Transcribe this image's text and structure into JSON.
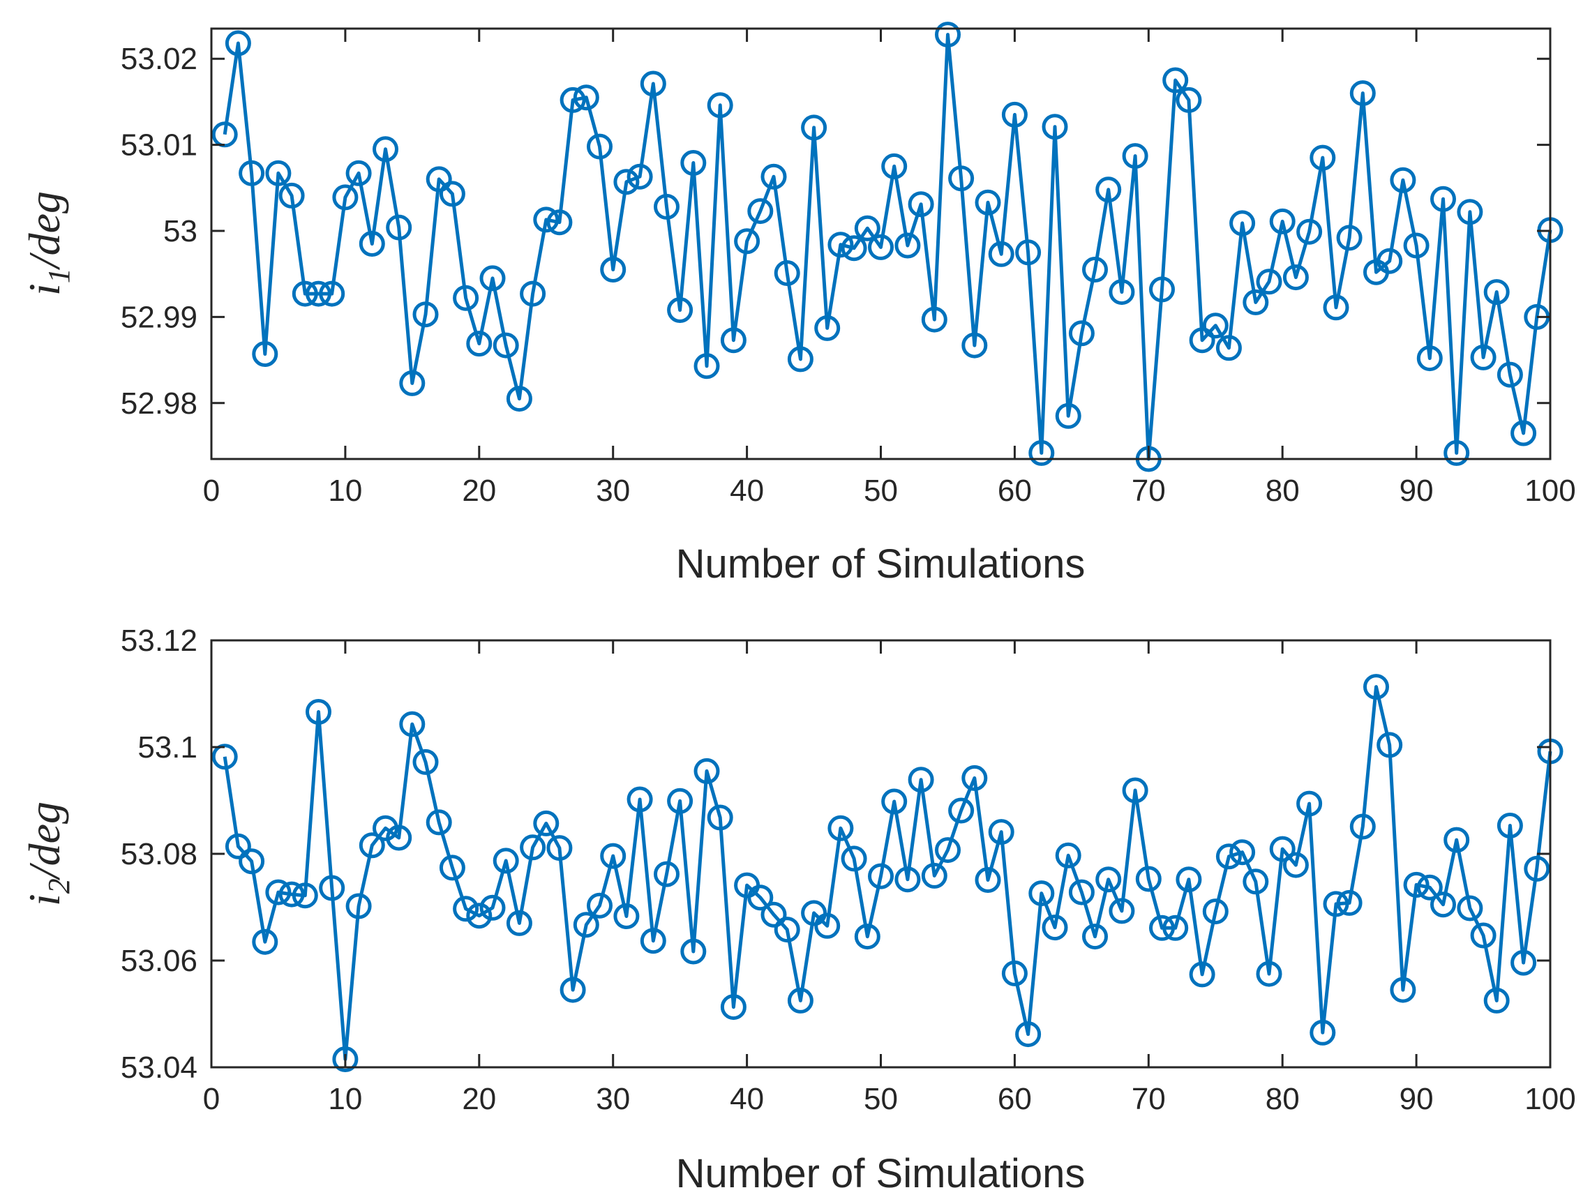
{
  "chart_data": [
    {
      "type": "line",
      "marker": "circle",
      "color": "#0072BD",
      "title": "",
      "xlabel": "Number of Simulations",
      "ylabel": {
        "base": "i",
        "sub": "1",
        "suffix": "/deg"
      },
      "xlim": [
        0,
        100
      ],
      "ylim": [
        52.9735,
        53.0235
      ],
      "xticks": [
        0,
        10,
        20,
        30,
        40,
        50,
        60,
        70,
        80,
        90,
        100
      ],
      "xtick_labels": [
        "0",
        "10",
        "20",
        "30",
        "40",
        "50",
        "60",
        "70",
        "80",
        "90",
        "100"
      ],
      "yticks": [
        52.98,
        52.99,
        53.0,
        53.01,
        53.02
      ],
      "ytick_labels": [
        "52.98",
        "52.99",
        "53",
        "53.01",
        "53.02"
      ],
      "grid": false,
      "x": [
        1,
        2,
        3,
        4,
        5,
        6,
        7,
        8,
        9,
        10,
        11,
        12,
        13,
        14,
        15,
        16,
        17,
        18,
        19,
        20,
        21,
        22,
        23,
        24,
        25,
        26,
        27,
        28,
        29,
        30,
        31,
        32,
        33,
        34,
        35,
        36,
        37,
        38,
        39,
        40,
        41,
        42,
        43,
        44,
        45,
        46,
        47,
        48,
        49,
        50,
        51,
        52,
        53,
        54,
        55,
        56,
        57,
        58,
        59,
        60,
        61,
        62,
        63,
        64,
        65,
        66,
        67,
        68,
        69,
        70,
        71,
        72,
        73,
        74,
        75,
        76,
        77,
        78,
        79,
        80,
        81,
        82,
        83,
        84,
        85,
        86,
        87,
        88,
        89,
        90,
        91,
        92,
        93,
        94,
        95,
        96,
        97,
        98,
        99,
        100
      ],
      "y": [
        53.0112,
        53.0218,
        53.0067,
        52.9857,
        53.0067,
        53.0041,
        52.9927,
        52.9927,
        52.9927,
        53.0039,
        53.0067,
        52.9985,
        53.0095,
        53.0004,
        52.9823,
        52.9903,
        53.006,
        53.0043,
        52.9922,
        52.9869,
        52.9945,
        52.9867,
        52.9805,
        52.9927,
        53.0013,
        53.001,
        53.0152,
        53.0155,
        53.0098,
        52.9955,
        53.0057,
        53.0063,
        53.0171,
        53.0028,
        52.9908,
        53.0079,
        52.9843,
        53.0146,
        52.9873,
        52.9988,
        53.0023,
        53.0063,
        52.9951,
        52.9851,
        53.012,
        52.9887,
        52.9984,
        52.998,
        53.0003,
        52.9981,
        53.0075,
        52.9983,
        53.0031,
        52.9897,
        53.0228,
        53.0061,
        52.9867,
        53.0033,
        52.9973,
        53.0135,
        52.9975,
        52.9742,
        53.0121,
        52.9785,
        52.9881,
        52.9955,
        53.0048,
        52.9929,
        53.0087,
        52.9735,
        52.9932,
        53.0175,
        53.0152,
        52.9873,
        52.989,
        52.9864,
        53.0009,
        52.9917,
        52.9941,
        53.0011,
        52.9946,
        52.9999,
        53.0085,
        52.9911,
        52.9992,
        53.016,
        52.9952,
        52.9965,
        53.0059,
        52.9983,
        52.9852,
        53.0037,
        52.9742,
        53.0022,
        52.9853,
        52.9929,
        52.9833,
        52.9765,
        52.99,
        53.0001
      ]
    },
    {
      "type": "line",
      "marker": "circle",
      "color": "#0072BD",
      "title": "",
      "xlabel": "Number of Simulations",
      "ylabel": {
        "base": "i",
        "sub": "2",
        "suffix": "/deg"
      },
      "xlim": [
        0,
        100
      ],
      "ylim": [
        53.04,
        53.12
      ],
      "xticks": [
        0,
        10,
        20,
        30,
        40,
        50,
        60,
        70,
        80,
        90,
        100
      ],
      "xtick_labels": [
        "0",
        "10",
        "20",
        "30",
        "40",
        "50",
        "60",
        "70",
        "80",
        "90",
        "100"
      ],
      "yticks": [
        53.04,
        53.06,
        53.08,
        53.1,
        53.12
      ],
      "ytick_labels": [
        "53.04",
        "53.06",
        "53.08",
        "53.1",
        "53.12"
      ],
      "grid": false,
      "x": [
        1,
        2,
        3,
        4,
        5,
        6,
        7,
        8,
        9,
        10,
        11,
        12,
        13,
        14,
        15,
        16,
        17,
        18,
        19,
        20,
        21,
        22,
        23,
        24,
        25,
        26,
        27,
        28,
        29,
        30,
        31,
        32,
        33,
        34,
        35,
        36,
        37,
        38,
        39,
        40,
        41,
        42,
        43,
        44,
        45,
        46,
        47,
        48,
        49,
        50,
        51,
        52,
        53,
        54,
        55,
        56,
        57,
        58,
        59,
        60,
        61,
        62,
        63,
        64,
        65,
        66,
        67,
        68,
        69,
        70,
        71,
        72,
        73,
        74,
        75,
        76,
        77,
        78,
        79,
        80,
        81,
        82,
        83,
        84,
        85,
        86,
        87,
        88,
        89,
        90,
        91,
        92,
        93,
        94,
        95,
        96,
        97,
        98,
        99,
        100
      ],
      "y": [
        53.0982,
        53.0814,
        53.0786,
        53.0635,
        53.0728,
        53.0724,
        53.0722,
        53.1066,
        53.0736,
        53.0415,
        53.0702,
        53.0816,
        53.0848,
        53.083,
        53.1043,
        53.0972,
        53.0859,
        53.0774,
        53.0697,
        53.0684,
        53.0699,
        53.0787,
        53.067,
        53.0812,
        53.0857,
        53.0811,
        53.0545,
        53.0667,
        53.0703,
        53.0796,
        53.0683,
        53.0902,
        53.0637,
        53.0762,
        53.0899,
        53.0617,
        53.0955,
        53.0868,
        53.0513,
        53.0741,
        53.0718,
        53.0686,
        53.0658,
        53.0525,
        53.0689,
        53.0665,
        53.0848,
        53.0791,
        53.0645,
        53.0758,
        53.0898,
        53.0752,
        53.0939,
        53.0759,
        53.0807,
        53.0881,
        53.0942,
        53.0751,
        53.0841,
        53.0576,
        53.0462,
        53.0726,
        53.0662,
        53.0797,
        53.0728,
        53.0645,
        53.0752,
        53.0693,
        53.0919,
        53.0753,
        53.0661,
        53.0661,
        53.0752,
        53.0574,
        53.0692,
        53.0795,
        53.0803,
        53.0748,
        53.0575,
        53.0809,
        53.0779,
        53.0894,
        53.0465,
        53.0706,
        53.0708,
        53.0851,
        53.1113,
        53.1004,
        53.0545,
        53.0742,
        53.0737,
        53.0705,
        53.0826,
        53.0698,
        53.0647,
        53.0525,
        53.0853,
        53.0596,
        53.0772,
        53.0992
      ]
    }
  ]
}
